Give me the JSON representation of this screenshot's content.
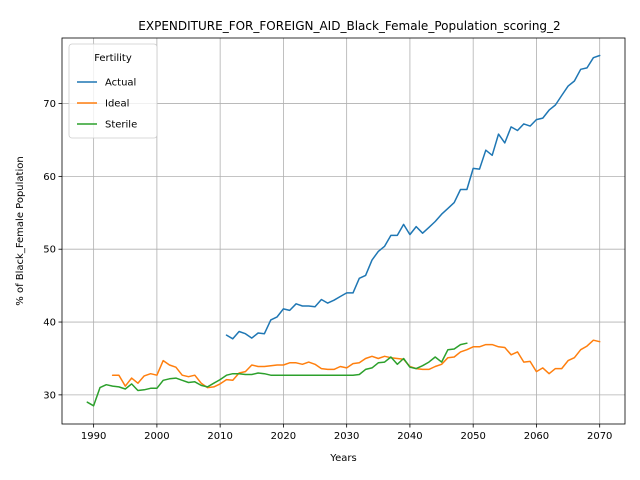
{
  "chart_data": {
    "type": "line",
    "title": "EXPENDITURE_FOR_FOREIGN_AID_Black_Female_Population_scoring_2",
    "xlabel": "Years",
    "ylabel": "% of Black_Female Population",
    "xlim": [
      1985,
      2074
    ],
    "ylim": [
      26,
      79
    ],
    "xticks": [
      1990,
      2000,
      2010,
      2020,
      2030,
      2040,
      2050,
      2060,
      2070
    ],
    "yticks": [
      30,
      40,
      50,
      60,
      70
    ],
    "grid": true,
    "legend": {
      "title": "Fertility",
      "placement": "top-left"
    },
    "series": [
      {
        "name": "Actual",
        "color": "#1f77b4",
        "x": [
          2011,
          2012,
          2013,
          2014,
          2015,
          2016,
          2017,
          2018,
          2019,
          2020,
          2021,
          2022,
          2023,
          2024,
          2025,
          2026,
          2027,
          2028,
          2029,
          2030,
          2031,
          2032,
          2033,
          2034,
          2035,
          2036,
          2037,
          2038,
          2039,
          2040,
          2041,
          2042,
          2043,
          2044,
          2045,
          2046,
          2047,
          2048,
          2049,
          2050,
          2051,
          2052,
          2053,
          2054,
          2055,
          2056,
          2057,
          2058,
          2059,
          2060,
          2061,
          2062,
          2063,
          2064,
          2065,
          2066,
          2067,
          2068,
          2069,
          2070
        ],
        "values": [
          38.2,
          37.7,
          38.7,
          38.4,
          37.8,
          38.5,
          38.4,
          40.3,
          40.7,
          41.8,
          41.6,
          42.5,
          42.2,
          42.2,
          42.1,
          43.1,
          42.6,
          43.0,
          43.5,
          44.0,
          44.0,
          46.0,
          46.4,
          48.5,
          49.7,
          50.4,
          51.9,
          51.9,
          53.4,
          52.0,
          53.1,
          52.2,
          53.0,
          53.8,
          54.8,
          55.6,
          56.4,
          58.2,
          58.2,
          61.1,
          61.0,
          63.6,
          62.9,
          65.8,
          64.6,
          66.8,
          66.3,
          67.2,
          66.9,
          67.8,
          68.0,
          69.1,
          69.8,
          71.1,
          72.4,
          73.1,
          74.7,
          74.9,
          76.3,
          76.6
        ]
      },
      {
        "name": "Ideal",
        "color": "#ff7f0e",
        "x": [
          1993,
          1994,
          1995,
          1996,
          1997,
          1998,
          1999,
          2000,
          2001,
          2002,
          2003,
          2004,
          2005,
          2006,
          2007,
          2008,
          2009,
          2010,
          2011,
          2012,
          2013,
          2014,
          2015,
          2016,
          2017,
          2018,
          2019,
          2020,
          2021,
          2022,
          2023,
          2024,
          2025,
          2026,
          2027,
          2028,
          2029,
          2030,
          2031,
          2032,
          2033,
          2034,
          2035,
          2036,
          2037,
          2038,
          2039,
          2040,
          2041,
          2042,
          2043,
          2044,
          2045,
          2046,
          2047,
          2048,
          2049,
          2050,
          2051,
          2052,
          2053,
          2054,
          2055,
          2056,
          2057,
          2058,
          2059,
          2060,
          2061,
          2062,
          2063,
          2064,
          2065,
          2066,
          2067,
          2068,
          2069,
          2070
        ],
        "values": [
          32.7,
          32.7,
          31.2,
          32.3,
          31.6,
          32.6,
          32.9,
          32.7,
          34.7,
          34.1,
          33.8,
          32.7,
          32.5,
          32.7,
          31.6,
          31.0,
          31.1,
          31.5,
          32.1,
          32.0,
          33.0,
          33.2,
          34.1,
          33.9,
          33.9,
          34.0,
          34.1,
          34.1,
          34.4,
          34.4,
          34.2,
          34.5,
          34.2,
          33.6,
          33.5,
          33.5,
          33.9,
          33.7,
          34.3,
          34.4,
          35.0,
          35.3,
          35.0,
          35.3,
          35.1,
          35.0,
          34.9,
          33.9,
          33.6,
          33.5,
          33.5,
          33.9,
          34.2,
          35.1,
          35.2,
          35.9,
          36.2,
          36.6,
          36.6,
          36.9,
          36.9,
          36.6,
          36.5,
          35.5,
          35.9,
          34.5,
          34.6,
          33.2,
          33.7,
          32.9,
          33.6,
          33.6,
          34.7,
          35.1,
          36.2,
          36.7,
          37.5,
          37.3
        ]
      },
      {
        "name": "Sterile",
        "color": "#2ca02c",
        "x": [
          1989,
          1990,
          1991,
          1992,
          1993,
          1994,
          1995,
          1996,
          1997,
          1998,
          1999,
          2000,
          2001,
          2002,
          2003,
          2004,
          2005,
          2006,
          2007,
          2008,
          2009,
          2010,
          2011,
          2012,
          2013,
          2014,
          2015,
          2016,
          2017,
          2018,
          2019,
          2020,
          2021,
          2022,
          2023,
          2024,
          2025,
          2026,
          2027,
          2028,
          2029,
          2030,
          2031,
          2032,
          2033,
          2034,
          2035,
          2036,
          2037,
          2038,
          2039,
          2040,
          2041,
          2042,
          2043,
          2044,
          2045,
          2046,
          2047,
          2048,
          2049
        ],
        "values": [
          29.0,
          28.5,
          31.0,
          31.4,
          31.2,
          31.1,
          30.8,
          31.5,
          30.6,
          30.7,
          30.9,
          30.9,
          32.0,
          32.2,
          32.3,
          32.0,
          31.7,
          31.8,
          31.3,
          31.1,
          31.6,
          32.1,
          32.7,
          32.9,
          32.9,
          32.8,
          32.8,
          33.0,
          32.9,
          32.7,
          32.7,
          32.7,
          32.7,
          32.7,
          32.7,
          32.7,
          32.7,
          32.7,
          32.7,
          32.7,
          32.7,
          32.7,
          32.7,
          32.8,
          33.5,
          33.7,
          34.4,
          34.5,
          35.2,
          34.2,
          35.0,
          33.8,
          33.6,
          34.0,
          34.5,
          35.2,
          34.5,
          36.2,
          36.3,
          36.9,
          37.1
        ]
      }
    ]
  }
}
